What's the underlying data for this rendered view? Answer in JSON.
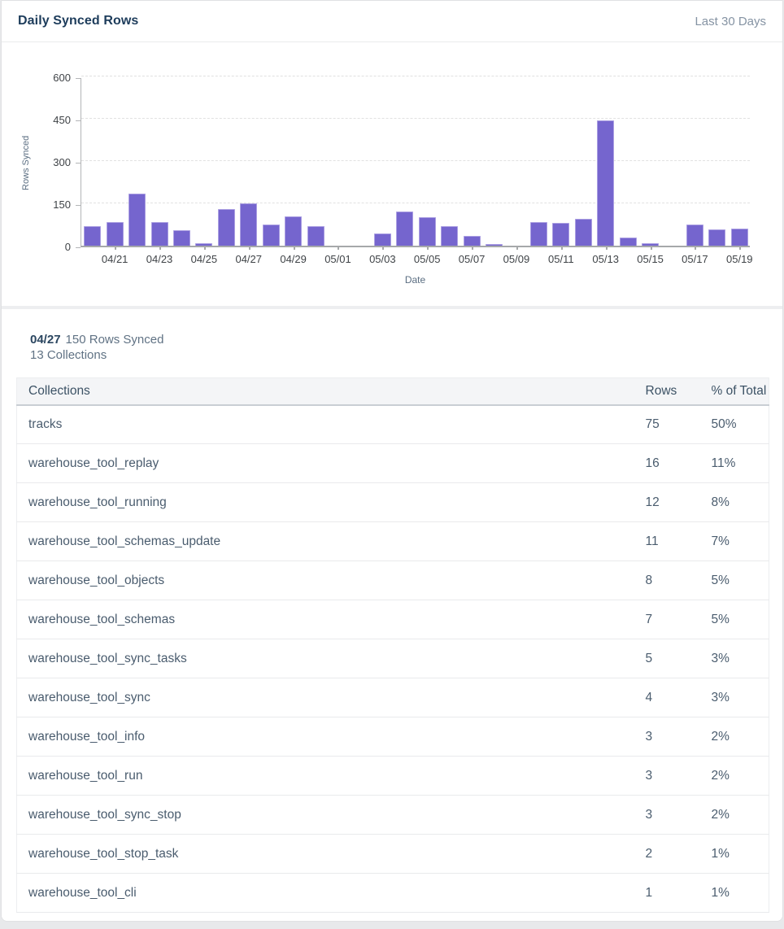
{
  "header": {
    "title": "Daily Synced Rows",
    "range_label": "Last 30 Days"
  },
  "chart_data": {
    "type": "bar",
    "title": "Daily Synced Rows",
    "xlabel": "Date",
    "ylabel": "Rows Synced",
    "ylim": [
      0,
      600
    ],
    "yticks": [
      0,
      150,
      300,
      450,
      600
    ],
    "grid": true,
    "legend_position": "none",
    "bar_color": "#7565ce",
    "x": [
      "04/20",
      "04/21",
      "04/22",
      "04/23",
      "04/24",
      "04/25",
      "04/26",
      "04/27",
      "04/28",
      "04/29",
      "04/30",
      "05/01",
      "05/02",
      "05/03",
      "05/04",
      "05/05",
      "05/06",
      "05/07",
      "05/08",
      "05/09",
      "05/10",
      "05/11",
      "05/12",
      "05/13",
      "05/14",
      "05/15",
      "05/16",
      "05/17",
      "05/18",
      "05/19"
    ],
    "values": [
      70,
      85,
      185,
      85,
      55,
      10,
      130,
      150,
      75,
      105,
      70,
      0,
      0,
      42,
      120,
      100,
      70,
      35,
      5,
      0,
      85,
      80,
      95,
      445,
      30,
      10,
      0,
      75,
      58,
      62
    ],
    "xtick_labels": [
      "04/21",
      "04/23",
      "04/25",
      "04/27",
      "04/29",
      "05/01",
      "05/03",
      "05/05",
      "05/07",
      "05/09",
      "05/11",
      "05/13",
      "05/15",
      "05/17",
      "05/19"
    ]
  },
  "summary": {
    "date": "04/27",
    "rows_label": "150 Rows Synced",
    "collections_label": "13 Collections"
  },
  "table": {
    "columns": [
      "Collections",
      "Rows",
      "% of Total"
    ],
    "rows": [
      {
        "collection": "tracks",
        "rows": "75",
        "pct": "50%"
      },
      {
        "collection": "warehouse_tool_replay",
        "rows": "16",
        "pct": "11%"
      },
      {
        "collection": "warehouse_tool_running",
        "rows": "12",
        "pct": "8%"
      },
      {
        "collection": "warehouse_tool_schemas_update",
        "rows": "11",
        "pct": "7%"
      },
      {
        "collection": "warehouse_tool_objects",
        "rows": "8",
        "pct": "5%"
      },
      {
        "collection": "warehouse_tool_schemas",
        "rows": "7",
        "pct": "5%"
      },
      {
        "collection": "warehouse_tool_sync_tasks",
        "rows": "5",
        "pct": "3%"
      },
      {
        "collection": "warehouse_tool_sync",
        "rows": "4",
        "pct": "3%"
      },
      {
        "collection": "warehouse_tool_info",
        "rows": "3",
        "pct": "2%"
      },
      {
        "collection": "warehouse_tool_run",
        "rows": "3",
        "pct": "2%"
      },
      {
        "collection": "warehouse_tool_sync_stop",
        "rows": "3",
        "pct": "2%"
      },
      {
        "collection": "warehouse_tool_stop_task",
        "rows": "2",
        "pct": "1%"
      },
      {
        "collection": "warehouse_tool_cli",
        "rows": "1",
        "pct": "1%"
      }
    ]
  }
}
